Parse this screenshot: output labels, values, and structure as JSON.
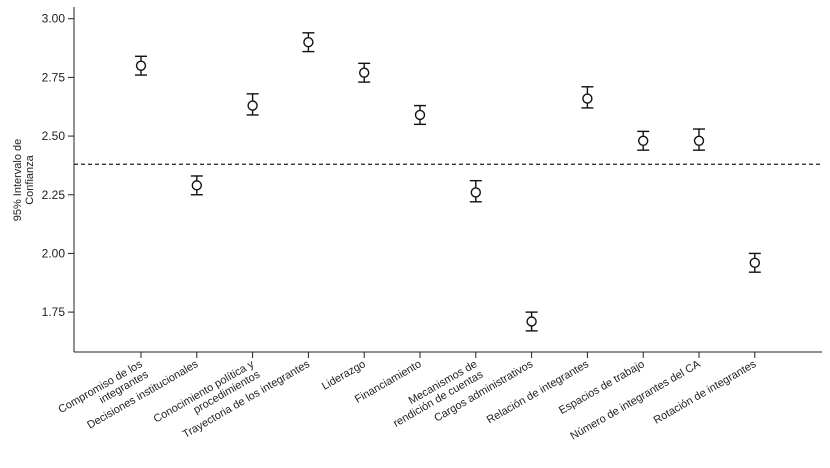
{
  "chart_data": {
    "type": "errorbar",
    "title": "",
    "xlabel": "",
    "ylabel": "95% Intervalo de Confianza",
    "ylim": [
      1.58,
      3.05
    ],
    "yticks": [
      3.0,
      2.75,
      2.5,
      2.25,
      2.0,
      1.75
    ],
    "ytick_labels": [
      "3.00",
      "2.75",
      "2.50",
      "2.25",
      "2.00",
      "1.75"
    ],
    "reference_line": 2.38,
    "grid": false,
    "legend": "none",
    "categories": [
      [
        "Compromiso de los",
        "integrantes"
      ],
      [
        "Decisiones institucionales"
      ],
      [
        "Conocimiento política y",
        "procedimientos"
      ],
      [
        "Trayectoria de los integrantes"
      ],
      [
        "Liderazgo"
      ],
      [
        "Financiamiento"
      ],
      [
        "Mecanismos de",
        "rendición de cuentas"
      ],
      [
        "Cargos administrativos"
      ],
      [
        "Relación de integrantes"
      ],
      [
        "Espacios de trabajo"
      ],
      [
        "Número de integrantes del CA"
      ],
      [
        "Rotación de integrantes"
      ]
    ],
    "mean": [
      2.8,
      2.29,
      2.63,
      2.9,
      2.77,
      2.59,
      2.26,
      1.71,
      2.66,
      2.48,
      2.48,
      1.96
    ],
    "lower": [
      2.76,
      2.25,
      2.59,
      2.86,
      2.73,
      2.55,
      2.22,
      1.67,
      2.62,
      2.44,
      2.44,
      1.92
    ],
    "upper": [
      2.84,
      2.33,
      2.68,
      2.94,
      2.81,
      2.63,
      2.31,
      1.75,
      2.71,
      2.52,
      2.53,
      2.0
    ]
  }
}
